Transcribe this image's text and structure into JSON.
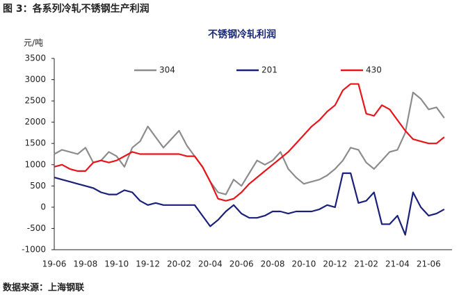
{
  "header": "图 3：各系列冷轧不锈钢生产利润",
  "source": "数据来源：上海钢联",
  "chart_data": {
    "type": "line",
    "title": "不锈钢冷轧利润",
    "y_label": "元/吨",
    "categories": [
      "19-06",
      null,
      null,
      null,
      "19-08",
      null,
      null,
      null,
      "19-10",
      null,
      null,
      null,
      "19-12",
      null,
      null,
      null,
      "20-02",
      null,
      null,
      null,
      "20-04",
      null,
      null,
      null,
      "20-06",
      null,
      null,
      null,
      "20-08",
      null,
      null,
      null,
      "20-10",
      null,
      null,
      null,
      "20-12",
      null,
      null,
      null,
      "21-02",
      null,
      null,
      null,
      "21-04",
      null,
      null,
      null,
      "21-06",
      null,
      null
    ],
    "series": [
      {
        "name": "304",
        "color": "#8c8c8c",
        "values": [
          1250,
          1350,
          1300,
          1250,
          1400,
          1050,
          1100,
          1300,
          1200,
          950,
          1400,
          1550,
          1900,
          1650,
          1400,
          1600,
          1800,
          1450,
          1200,
          950,
          600,
          350,
          300,
          650,
          500,
          800,
          1100,
          1000,
          1100,
          1300,
          900,
          700,
          550,
          600,
          650,
          750,
          900,
          1100,
          1400,
          1350,
          1050,
          900,
          1100,
          1300,
          1350,
          1750,
          2700,
          2550,
          2300,
          2350,
          2100
        ]
      },
      {
        "name": "201",
        "color": "#1a1f7a",
        "values": [
          700,
          650,
          600,
          550,
          500,
          450,
          350,
          300,
          300,
          400,
          350,
          150,
          50,
          100,
          50,
          50,
          50,
          50,
          50,
          -200,
          -450,
          -300,
          -100,
          50,
          -150,
          -250,
          -250,
          -200,
          -100,
          -100,
          -150,
          -100,
          -100,
          -100,
          -50,
          50,
          0,
          800,
          800,
          100,
          150,
          350,
          -400,
          -400,
          -200,
          -650,
          350,
          0,
          -200,
          -150,
          -50
        ]
      },
      {
        "name": "430",
        "color": "#e8141a",
        "values": [
          950,
          1000,
          900,
          850,
          850,
          1050,
          1100,
          1050,
          1100,
          1200,
          1300,
          1250,
          1250,
          1250,
          1250,
          1250,
          1250,
          1200,
          1200,
          950,
          600,
          200,
          150,
          200,
          350,
          550,
          700,
          850,
          1000,
          1150,
          1300,
          1500,
          1700,
          1900,
          2050,
          2250,
          2400,
          2750,
          2900,
          2900,
          2200,
          2150,
          2400,
          2300,
          2050,
          1800,
          1600,
          1550,
          1500,
          1500,
          1650
        ]
      }
    ],
    "ylim": [
      -1000,
      3500
    ],
    "yticks": [
      -1000,
      -500,
      0,
      500,
      1000,
      1500,
      2000,
      2500,
      3000,
      3500
    ],
    "grid": false
  }
}
